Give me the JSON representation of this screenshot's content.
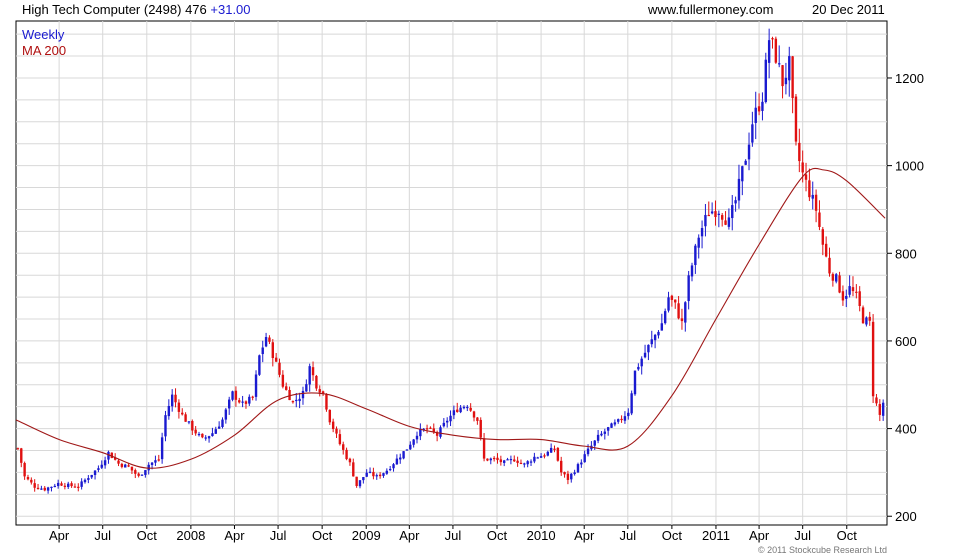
{
  "header": {
    "title": "High Tech Computer (2498) 476",
    "change": "+31.00",
    "source": "www.fullermoney.com",
    "date": "20 Dec 2011"
  },
  "legend": {
    "weekly": "Weekly",
    "ma": "MA 200"
  },
  "copyright": "© 2011 Stockcube Research Ltd",
  "colors": {
    "up": "#1a1ad0",
    "down": "#e01010",
    "ma": "#a01818",
    "grid": "#d8d8d8",
    "axis": "#000000"
  },
  "chart_data": {
    "type": "candlestick",
    "title": "High Tech Computer (2498) 476 +31.00",
    "interval": "Weekly",
    "x_axis": {
      "range": [
        "2007-01-01",
        "2011-12-24"
      ],
      "ticks": [
        {
          "date": "2007-04-01",
          "label": "Apr"
        },
        {
          "date": "2007-07-01",
          "label": "Jul"
        },
        {
          "date": "2007-10-01",
          "label": "Oct"
        },
        {
          "date": "2008-01-01",
          "label": "2008"
        },
        {
          "date": "2008-04-01",
          "label": "Apr"
        },
        {
          "date": "2008-07-01",
          "label": "Jul"
        },
        {
          "date": "2008-10-01",
          "label": "Oct"
        },
        {
          "date": "2009-01-01",
          "label": "2009"
        },
        {
          "date": "2009-04-01",
          "label": "Apr"
        },
        {
          "date": "2009-07-01",
          "label": "Jul"
        },
        {
          "date": "2009-10-01",
          "label": "Oct"
        },
        {
          "date": "2010-01-01",
          "label": "2010"
        },
        {
          "date": "2010-04-01",
          "label": "Apr"
        },
        {
          "date": "2010-07-01",
          "label": "Jul"
        },
        {
          "date": "2010-10-01",
          "label": "Oct"
        },
        {
          "date": "2011-01-01",
          "label": "2011"
        },
        {
          "date": "2011-04-01",
          "label": "Apr"
        },
        {
          "date": "2011-07-01",
          "label": "Jul"
        },
        {
          "date": "2011-10-01",
          "label": "Oct"
        }
      ]
    },
    "y_axis": {
      "range": [
        180,
        1330
      ],
      "ticks": [
        200,
        400,
        600,
        800,
        1000,
        1200
      ],
      "minor_step": 50,
      "position": "right"
    },
    "grid": true,
    "legend_position": "top-left",
    "price_path": [
      [
        "2007-01-05",
        355
      ],
      [
        "2007-01-19",
        290
      ],
      [
        "2007-02-09",
        268
      ],
      [
        "2007-03-02",
        262
      ],
      [
        "2007-03-30",
        275
      ],
      [
        "2007-04-20",
        270
      ],
      [
        "2007-05-11",
        268
      ],
      [
        "2007-06-01",
        290
      ],
      [
        "2007-06-22",
        310
      ],
      [
        "2007-07-13",
        345
      ],
      [
        "2007-08-03",
        320
      ],
      [
        "2007-08-24",
        312
      ],
      [
        "2007-09-14",
        290
      ],
      [
        "2007-10-05",
        318
      ],
      [
        "2007-10-26",
        330
      ],
      [
        "2007-11-09",
        430
      ],
      [
        "2007-11-23",
        475
      ],
      [
        "2007-12-14",
        430
      ],
      [
        "2008-01-04",
        400
      ],
      [
        "2008-01-25",
        375
      ],
      [
        "2008-02-15",
        390
      ],
      [
        "2008-03-07",
        420
      ],
      [
        "2008-03-28",
        480
      ],
      [
        "2008-04-18",
        455
      ],
      [
        "2008-05-09",
        470
      ],
      [
        "2008-05-23",
        565
      ],
      [
        "2008-06-06",
        610
      ],
      [
        "2008-06-20",
        570
      ],
      [
        "2008-07-11",
        500
      ],
      [
        "2008-08-01",
        460
      ],
      [
        "2008-08-22",
        480
      ],
      [
        "2008-09-05",
        540
      ],
      [
        "2008-09-19",
        500
      ],
      [
        "2008-10-03",
        480
      ],
      [
        "2008-10-17",
        420
      ],
      [
        "2008-11-07",
        365
      ],
      [
        "2008-11-28",
        320
      ],
      [
        "2008-12-12",
        270
      ],
      [
        "2009-01-02",
        300
      ],
      [
        "2009-01-23",
        290
      ],
      [
        "2009-02-13",
        305
      ],
      [
        "2009-03-06",
        330
      ],
      [
        "2009-03-27",
        355
      ],
      [
        "2009-04-17",
        390
      ],
      [
        "2009-05-08",
        400
      ],
      [
        "2009-05-29",
        385
      ],
      [
        "2009-06-19",
        420
      ],
      [
        "2009-07-10",
        445
      ],
      [
        "2009-07-31",
        455
      ],
      [
        "2009-08-21",
        420
      ],
      [
        "2009-09-04",
        330
      ],
      [
        "2009-09-25",
        330
      ],
      [
        "2009-10-16",
        322
      ],
      [
        "2009-11-06",
        330
      ],
      [
        "2009-11-27",
        318
      ],
      [
        "2009-12-18",
        335
      ],
      [
        "2010-01-08",
        340
      ],
      [
        "2010-01-29",
        355
      ],
      [
        "2010-02-12",
        300
      ],
      [
        "2010-02-26",
        285
      ],
      [
        "2010-03-19",
        315
      ],
      [
        "2010-04-09",
        350
      ],
      [
        "2010-04-30",
        380
      ],
      [
        "2010-05-21",
        400
      ],
      [
        "2010-06-11",
        415
      ],
      [
        "2010-07-02",
        440
      ],
      [
        "2010-07-16",
        530
      ],
      [
        "2010-07-30",
        560
      ],
      [
        "2010-08-20",
        600
      ],
      [
        "2010-09-10",
        640
      ],
      [
        "2010-09-24",
        700
      ],
      [
        "2010-10-08",
        680
      ],
      [
        "2010-10-22",
        640
      ],
      [
        "2010-11-05",
        740
      ],
      [
        "2010-11-26",
        840
      ],
      [
        "2010-12-17",
        895
      ],
      [
        "2011-01-07",
        900
      ],
      [
        "2011-01-28",
        870
      ],
      [
        "2011-02-11",
        920
      ],
      [
        "2011-03-04",
        1020
      ],
      [
        "2011-03-18",
        1100
      ],
      [
        "2011-04-08",
        1160
      ],
      [
        "2011-04-22",
        1290
      ],
      [
        "2011-05-06",
        1250
      ],
      [
        "2011-05-20",
        1190
      ],
      [
        "2011-06-03",
        1230
      ],
      [
        "2011-06-17",
        1040
      ],
      [
        "2011-07-01",
        980
      ],
      [
        "2011-07-15",
        940
      ],
      [
        "2011-07-29",
        900
      ],
      [
        "2011-08-12",
        820
      ],
      [
        "2011-08-26",
        760
      ],
      [
        "2011-09-09",
        740
      ],
      [
        "2011-09-23",
        700
      ],
      [
        "2011-10-07",
        720
      ],
      [
        "2011-10-21",
        700
      ],
      [
        "2011-11-04",
        650
      ],
      [
        "2011-11-18",
        640
      ],
      [
        "2011-11-25",
        480
      ],
      [
        "2011-12-09",
        430
      ],
      [
        "2011-12-20",
        476
      ]
    ],
    "series": [
      {
        "name": "MA 200",
        "values": [
          [
            "2007-01-01",
            420
          ],
          [
            "2007-04-01",
            375
          ],
          [
            "2007-07-01",
            345
          ],
          [
            "2007-10-01",
            310
          ],
          [
            "2008-01-01",
            330
          ],
          [
            "2008-04-01",
            385
          ],
          [
            "2008-07-01",
            465
          ],
          [
            "2008-10-01",
            480
          ],
          [
            "2009-01-01",
            445
          ],
          [
            "2009-04-01",
            405
          ],
          [
            "2009-07-01",
            385
          ],
          [
            "2009-10-01",
            375
          ],
          [
            "2010-01-01",
            375
          ],
          [
            "2010-04-01",
            360
          ],
          [
            "2010-07-01",
            360
          ],
          [
            "2010-10-01",
            475
          ],
          [
            "2011-01-01",
            650
          ],
          [
            "2011-04-01",
            820
          ],
          [
            "2011-07-01",
            975
          ],
          [
            "2011-08-15",
            990
          ],
          [
            "2011-10-01",
            965
          ],
          [
            "2011-12-20",
            880
          ]
        ]
      }
    ]
  }
}
